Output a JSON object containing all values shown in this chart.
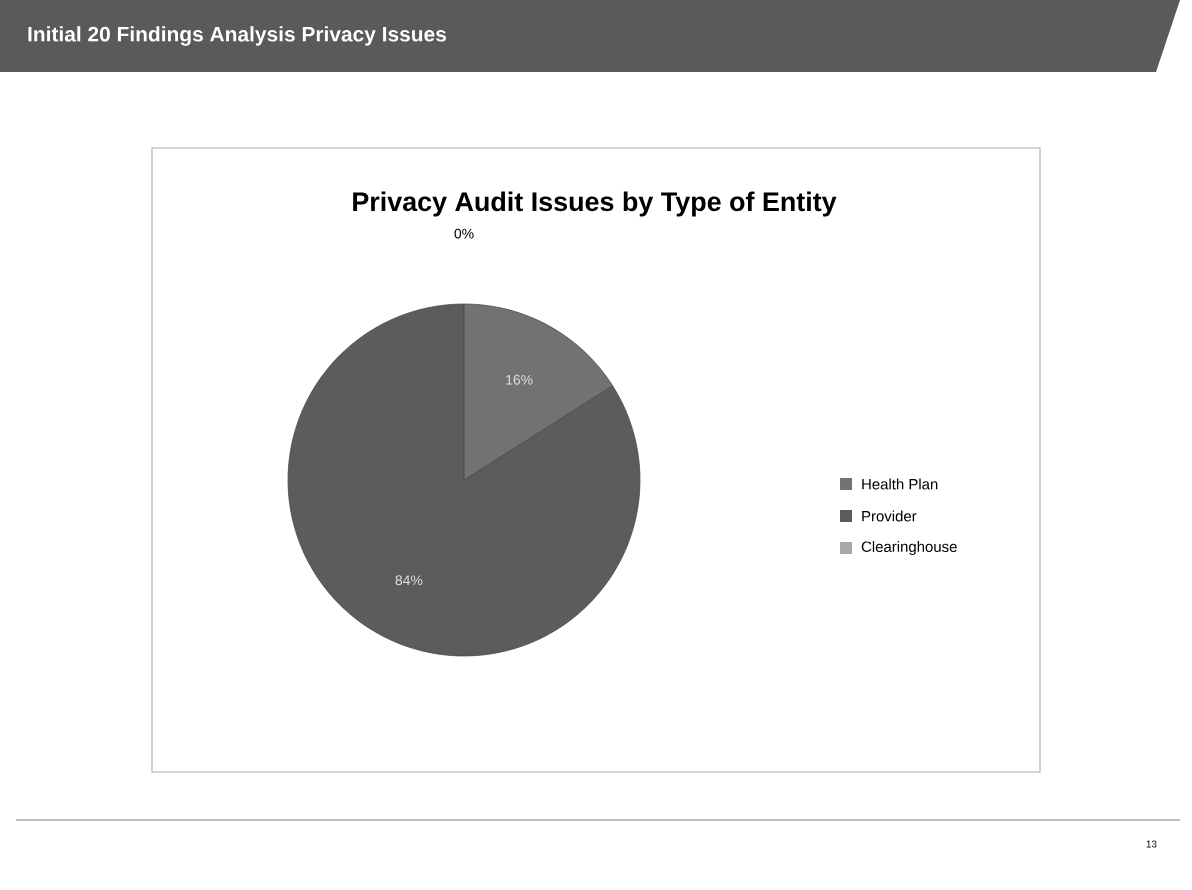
{
  "chart_data": {
    "type": "pie",
    "title": "Privacy Audit Issues by Type of Entity",
    "subtitle": "Initial 20 Findings Analysis Privacy Issues",
    "categories": [
      "Health Plan",
      "Provider",
      "Clearinghouse"
    ],
    "values": [
      16,
      84,
      0
    ],
    "colors": [
      "#727272",
      "#5c5c5c",
      "#a8a8a8"
    ],
    "value_labels": [
      "16%",
      "84%",
      "0%"
    ],
    "legend": "right",
    "annotations": [
      "13"
    ]
  }
}
